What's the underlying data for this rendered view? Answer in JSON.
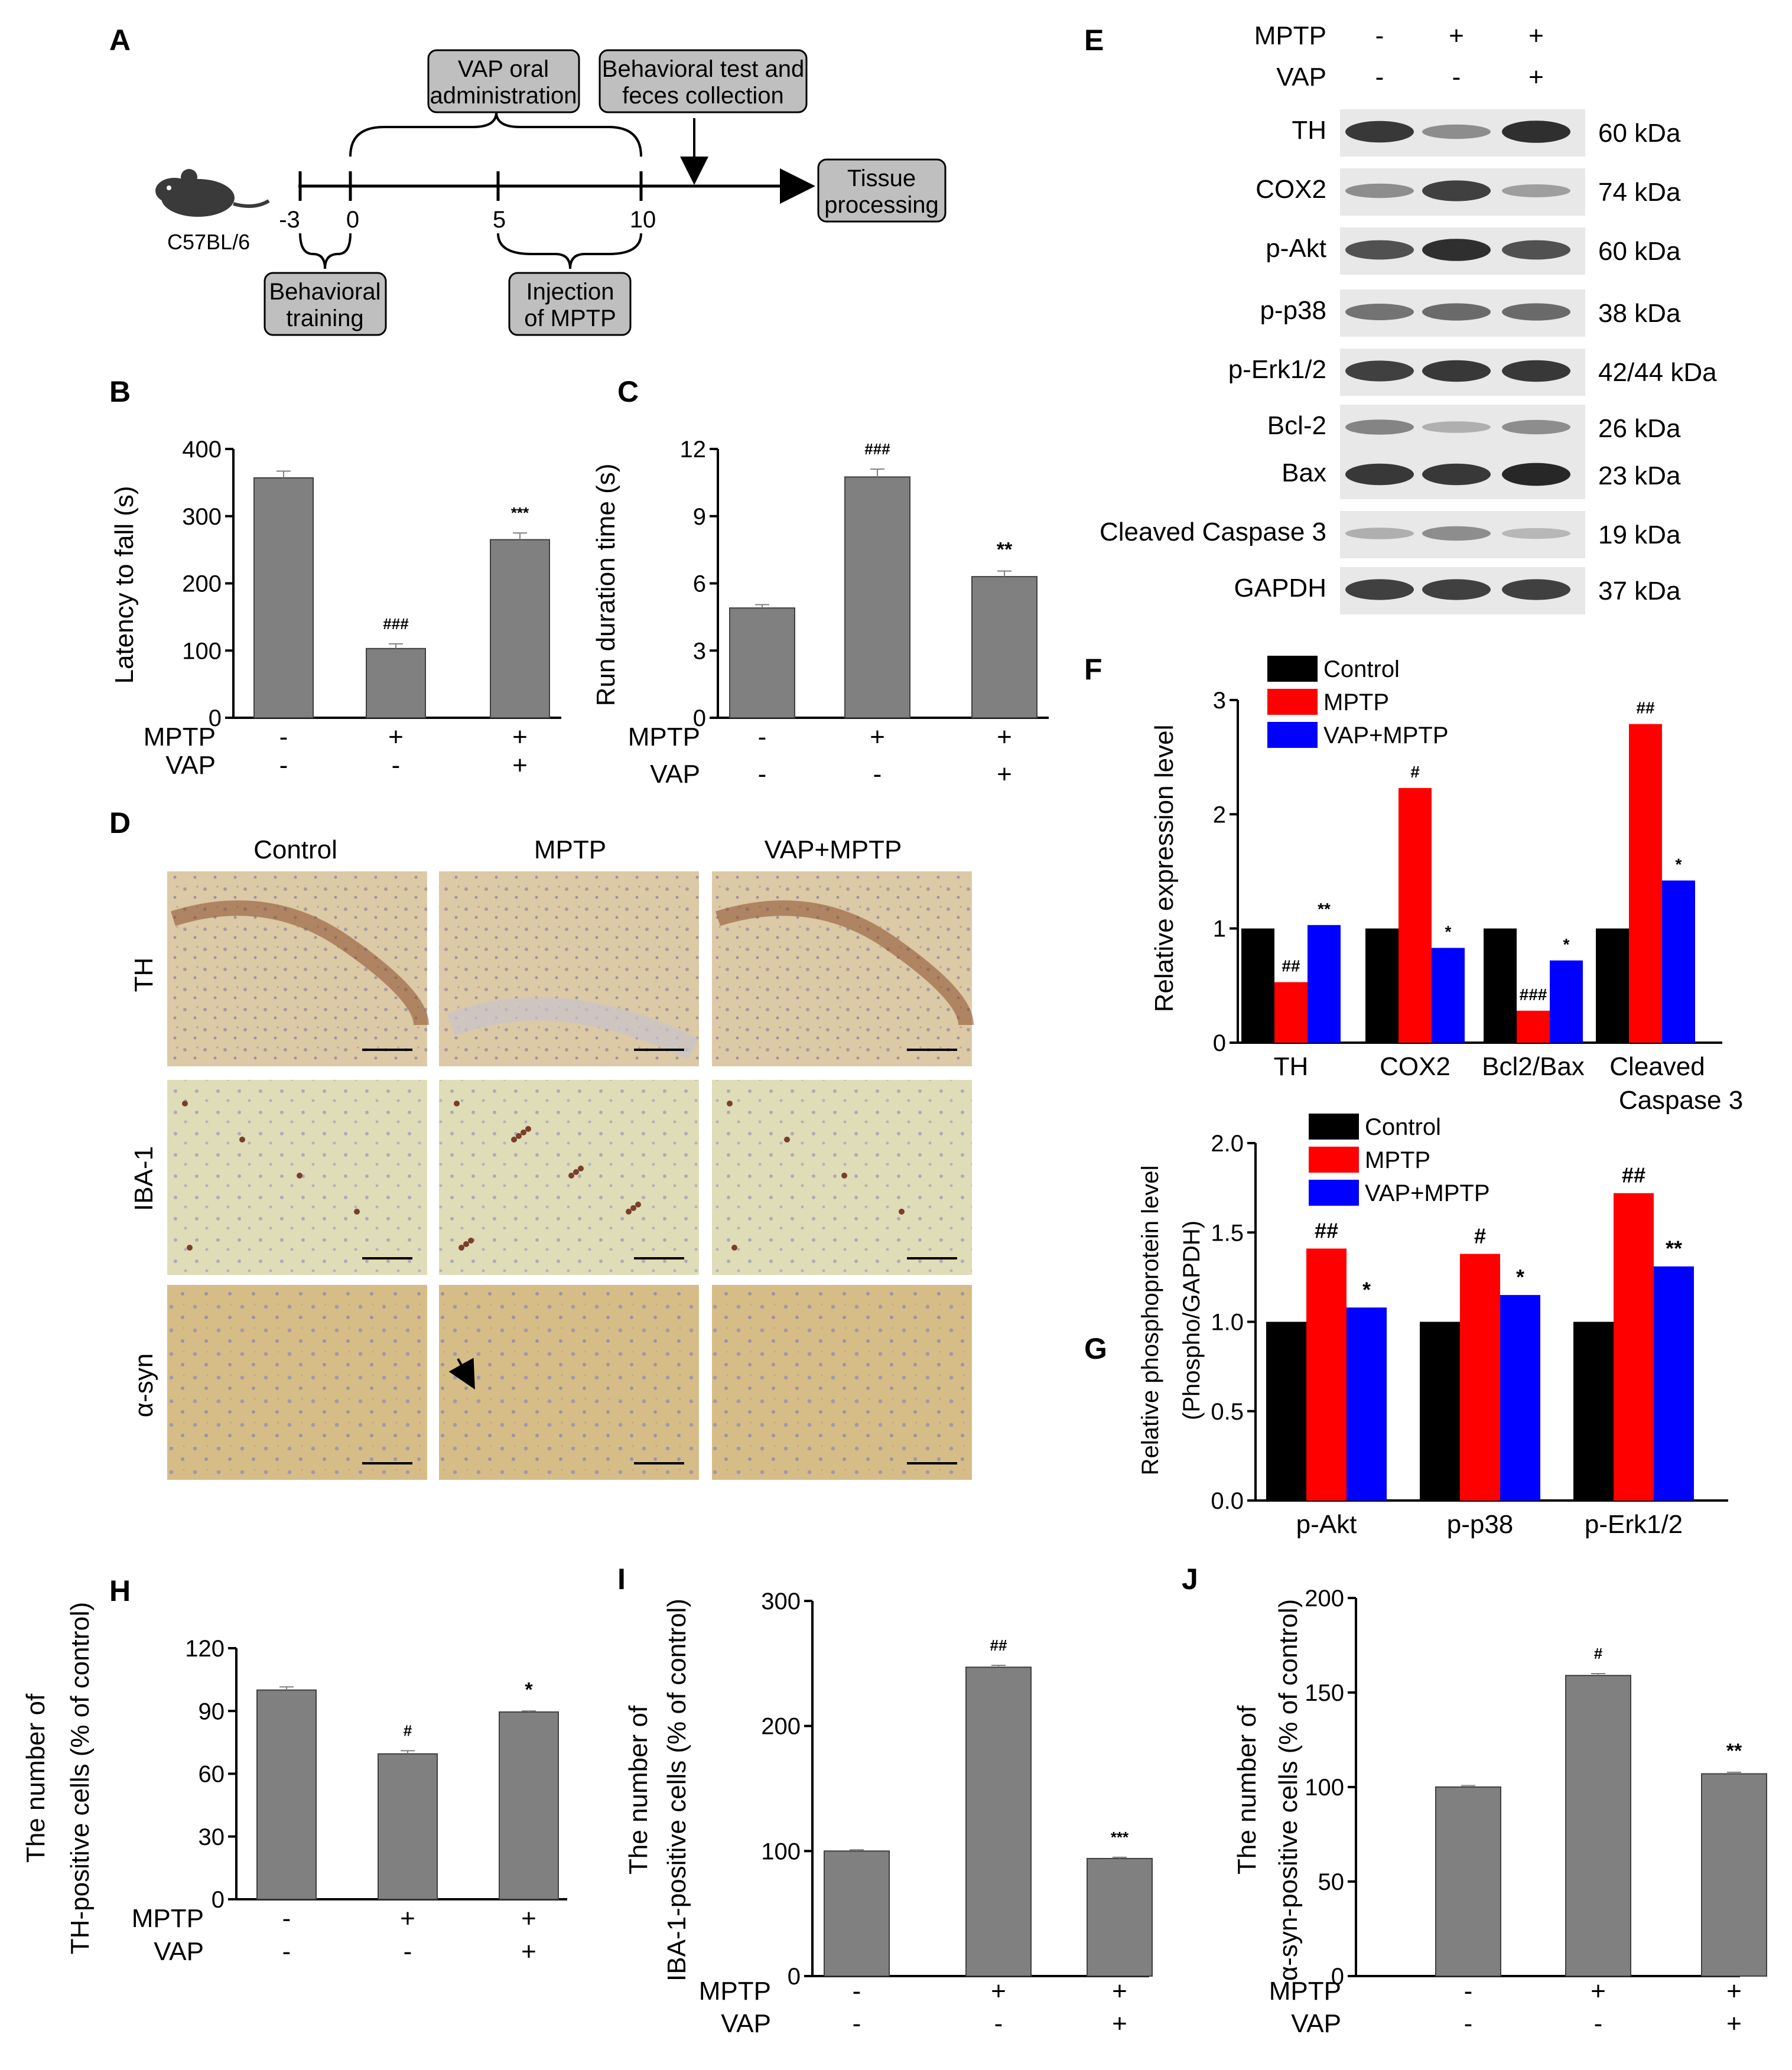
{
  "figure": {
    "colors": {
      "bar_gray": "#808080",
      "control": "#000000",
      "mptp": "#ff0000",
      "vap_mptp": "#0000ff",
      "box": "#bfbfbf"
    },
    "panel_letters": [
      "A",
      "B",
      "C",
      "D",
      "E",
      "F",
      "G",
      "H",
      "I",
      "J"
    ]
  },
  "timeline": {
    "animal_label": "C57BL/6",
    "ticks": [
      "-3",
      "0",
      "5",
      "10"
    ],
    "boxes": {
      "vap": [
        "VAP oral",
        "administration"
      ],
      "behavior": [
        "Behavioral test and",
        "feces collection"
      ],
      "tissue": [
        "Tissue",
        "processing"
      ],
      "training": [
        "Behavioral",
        "training"
      ],
      "injection": [
        "Injection",
        "of MPTP"
      ]
    }
  },
  "histology": {
    "columns": [
      "Control",
      "MPTP",
      "VAP+MPTP"
    ],
    "rows": [
      "TH",
      "IBA-1",
      "α-syn"
    ]
  },
  "western": {
    "conditions": [
      {
        "label": "MPTP",
        "signs": [
          "-",
          "+",
          "+"
        ]
      },
      {
        "label": "VAP",
        "signs": [
          "-",
          "-",
          "+"
        ]
      }
    ],
    "blots": [
      {
        "name": "TH",
        "kda": "60 kDa",
        "levels": [
          0.85,
          0.35,
          0.9
        ]
      },
      {
        "name": "COX2",
        "kda": "74 kDa",
        "levels": [
          0.35,
          0.8,
          0.25
        ]
      },
      {
        "name": "p-Akt",
        "kda": "60 kDa",
        "levels": [
          0.7,
          0.9,
          0.7
        ]
      },
      {
        "name": "p-p38",
        "kda": "38 kDa",
        "levels": [
          0.5,
          0.55,
          0.55
        ]
      },
      {
        "name": "p-Erk1/2",
        "kda": "42/44 kDa",
        "levels": [
          0.8,
          0.85,
          0.85
        ]
      },
      {
        "name": "Bcl-2",
        "kda": "26 kDa",
        "levels": [
          0.4,
          0.15,
          0.35
        ]
      },
      {
        "name": "Bax",
        "kda": "23 kDa",
        "levels": [
          0.85,
          0.85,
          0.95
        ]
      },
      {
        "name": "Cleaved Caspase 3",
        "kda": "19 kDa",
        "levels": [
          0.15,
          0.35,
          0.1
        ]
      },
      {
        "name": "GAPDH",
        "kda": "37 kDa",
        "levels": [
          0.8,
          0.8,
          0.8
        ]
      }
    ]
  },
  "chart_data": [
    {
      "id": "B",
      "type": "bar",
      "ylabel": "Latency to fall (s)",
      "ylim": [
        0,
        400
      ],
      "yticks": [
        0,
        100,
        200,
        300,
        400
      ],
      "values": [
        357,
        103,
        265
      ],
      "errors": [
        10,
        7,
        10
      ],
      "sig": [
        "",
        "###",
        "***"
      ],
      "conditions": [
        {
          "label": "MPTP",
          "signs": [
            "-",
            "+",
            "+"
          ]
        },
        {
          "label": "VAP",
          "signs": [
            "-",
            "-",
            "+"
          ]
        }
      ]
    },
    {
      "id": "C",
      "type": "bar",
      "ylabel": "Run duration time (s)",
      "ylim": [
        0,
        12
      ],
      "yticks": [
        0,
        3,
        6,
        9,
        12
      ],
      "values": [
        4.9,
        10.75,
        6.3
      ],
      "errors": [
        0.15,
        0.35,
        0.25
      ],
      "sig": [
        "",
        "###",
        "**"
      ],
      "conditions": [
        {
          "label": "MPTP",
          "signs": [
            "-",
            "+",
            "+"
          ]
        },
        {
          "label": "VAP",
          "signs": [
            "-",
            "-",
            "+"
          ]
        }
      ]
    },
    {
      "id": "F",
      "type": "bar",
      "ylabel": "Relative expression level",
      "ylim": [
        0,
        3
      ],
      "yticks": [
        0,
        1,
        2,
        3
      ],
      "categories": [
        "TH",
        "COX2",
        "Bcl2/Bax",
        "Cleaved Caspase 3"
      ],
      "series": [
        {
          "name": "Control",
          "color": "#000000",
          "values": [
            1,
            1,
            1,
            1
          ],
          "sig": [
            "",
            "",
            "",
            ""
          ]
        },
        {
          "name": "MPTP",
          "color": "#ff0000",
          "values": [
            0.53,
            2.23,
            0.28,
            2.79
          ],
          "sig": [
            "##",
            "#",
            "###",
            "##"
          ]
        },
        {
          "name": "VAP+MPTP",
          "color": "#0000ff",
          "values": [
            1.03,
            0.83,
            0.72,
            1.42
          ],
          "sig": [
            "**",
            "*",
            "*",
            "*"
          ]
        }
      ],
      "legend": "top-left"
    },
    {
      "id": "G",
      "type": "bar",
      "ylabel": "Relative phosphoprotein level",
      "ylabel2": "(Phospho/GAPDH)",
      "ylim": [
        0,
        2.0
      ],
      "yticks": [
        "0.0",
        "0.5",
        "1.0",
        "1.5",
        "2.0"
      ],
      "categories": [
        "p-Akt",
        "p-p38",
        "p-Erk1/2"
      ],
      "series": [
        {
          "name": "Control",
          "color": "#000000",
          "values": [
            1.0,
            1.0,
            1.0
          ],
          "sig": [
            "",
            "",
            ""
          ]
        },
        {
          "name": "MPTP",
          "color": "#ff0000",
          "values": [
            1.41,
            1.38,
            1.72
          ],
          "sig": [
            "##",
            "#",
            "##"
          ]
        },
        {
          "name": "VAP+MPTP",
          "color": "#0000ff",
          "values": [
            1.08,
            1.15,
            1.31
          ],
          "sig": [
            "*",
            "*",
            "**"
          ]
        }
      ],
      "legend": "top-left"
    },
    {
      "id": "H",
      "type": "bar",
      "ylabel": "The number of",
      "ylabel2": "TH-positive cells (% of control)",
      "ylim": [
        0,
        120
      ],
      "yticks": [
        0,
        30,
        60,
        90,
        120
      ],
      "values": [
        100,
        69.5,
        89.5
      ],
      "errors": [
        1.5,
        1.5,
        0.5
      ],
      "sig": [
        "",
        "#",
        "*"
      ],
      "conditions": [
        {
          "label": "MPTP",
          "signs": [
            "-",
            "+",
            "+"
          ]
        },
        {
          "label": "VAP",
          "signs": [
            "-",
            "-",
            "+"
          ]
        }
      ]
    },
    {
      "id": "I",
      "type": "bar",
      "ylabel": "The number of",
      "ylabel2": "IBA-1-positive cells (% of control)",
      "ylim": [
        0,
        300
      ],
      "yticks": [
        0,
        100,
        200,
        300
      ],
      "values": [
        100,
        247,
        94
      ],
      "errors": [
        1,
        1.5,
        1
      ],
      "sig": [
        "",
        "##",
        "***"
      ],
      "conditions": [
        {
          "label": "MPTP",
          "signs": [
            "-",
            "+",
            "+"
          ]
        },
        {
          "label": "VAP",
          "signs": [
            "-",
            "-",
            "+"
          ]
        }
      ]
    },
    {
      "id": "J",
      "type": "bar",
      "ylabel": "The number of",
      "ylabel2": "α-syn-positive cells (% of control)",
      "ylim": [
        0,
        200
      ],
      "yticks": [
        0,
        50,
        100,
        150,
        200
      ],
      "values": [
        100,
        159,
        107
      ],
      "errors": [
        0.8,
        1,
        0.8
      ],
      "sig": [
        "",
        "#",
        "**"
      ],
      "conditions": [
        {
          "label": "MPTP",
          "signs": [
            "-",
            "+",
            "+"
          ]
        },
        {
          "label": "VAP",
          "signs": [
            "-",
            "-",
            "+"
          ]
        }
      ]
    }
  ]
}
